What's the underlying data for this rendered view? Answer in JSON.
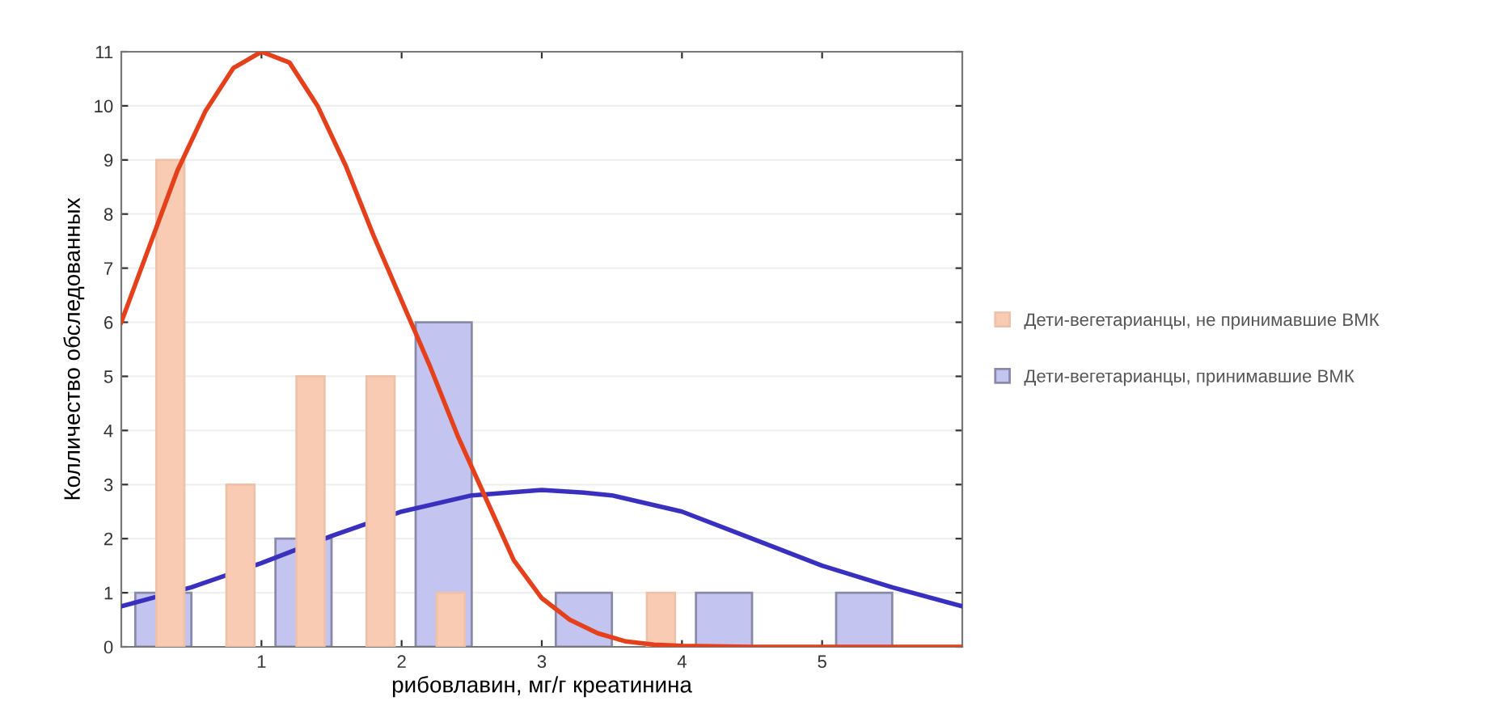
{
  "chart_data": {
    "type": "bar",
    "xlabel": "рибовлавин, мг/г креатинина",
    "ylabel": "Колличество обследованных",
    "xlim": [
      0,
      6
    ],
    "xticks": [
      1,
      2,
      3,
      4,
      5
    ],
    "ylim": [
      0,
      11
    ],
    "yticks": [
      0,
      1,
      2,
      3,
      4,
      5,
      6,
      7,
      8,
      9,
      10,
      11
    ],
    "grid": "y",
    "legend": "right",
    "series": [
      {
        "name": "Дети-вегетарианцы, принимавшие ВМК",
        "color": "#c4c4f0",
        "x": [
          0.3,
          1.3,
          2.3,
          3.3,
          4.3,
          5.3
        ],
        "values": [
          1,
          2,
          6,
          1,
          1,
          1
        ]
      },
      {
        "type": "line",
        "color": "#3a30c0",
        "x": [
          0,
          0.5,
          1,
          1.5,
          2,
          2.5,
          3,
          3.3,
          3.5,
          4,
          4.5,
          5,
          5.5,
          6
        ],
        "values": [
          0.75,
          1.1,
          1.55,
          2.05,
          2.5,
          2.8,
          2.9,
          2.85,
          2.8,
          2.5,
          2.0,
          1.5,
          1.1,
          0.75
        ]
      },
      {
        "name": "Дети-вегетарианцы, не принимавшие ВМК",
        "color": "#f9cbb3",
        "x": [
          0.35,
          0.85,
          1.35,
          1.85,
          2.35,
          3.85
        ],
        "values": [
          9,
          3,
          5,
          5,
          1,
          1
        ]
      },
      {
        "type": "line",
        "color": "#e4401c",
        "x": [
          0,
          0.2,
          0.4,
          0.6,
          0.8,
          1.0,
          1.2,
          1.4,
          1.6,
          1.8,
          2.0,
          2.2,
          2.4,
          2.6,
          2.8,
          3.0,
          3.2,
          3.4,
          3.6,
          3.8,
          4.0,
          4.5,
          5,
          6
        ],
        "values": [
          6.0,
          7.4,
          8.8,
          9.9,
          10.7,
          11.0,
          10.8,
          10.0,
          8.9,
          7.6,
          6.4,
          5.2,
          3.9,
          2.75,
          1.6,
          0.9,
          0.5,
          0.25,
          0.1,
          0.04,
          0.02,
          0,
          0,
          0
        ]
      }
    ]
  }
}
